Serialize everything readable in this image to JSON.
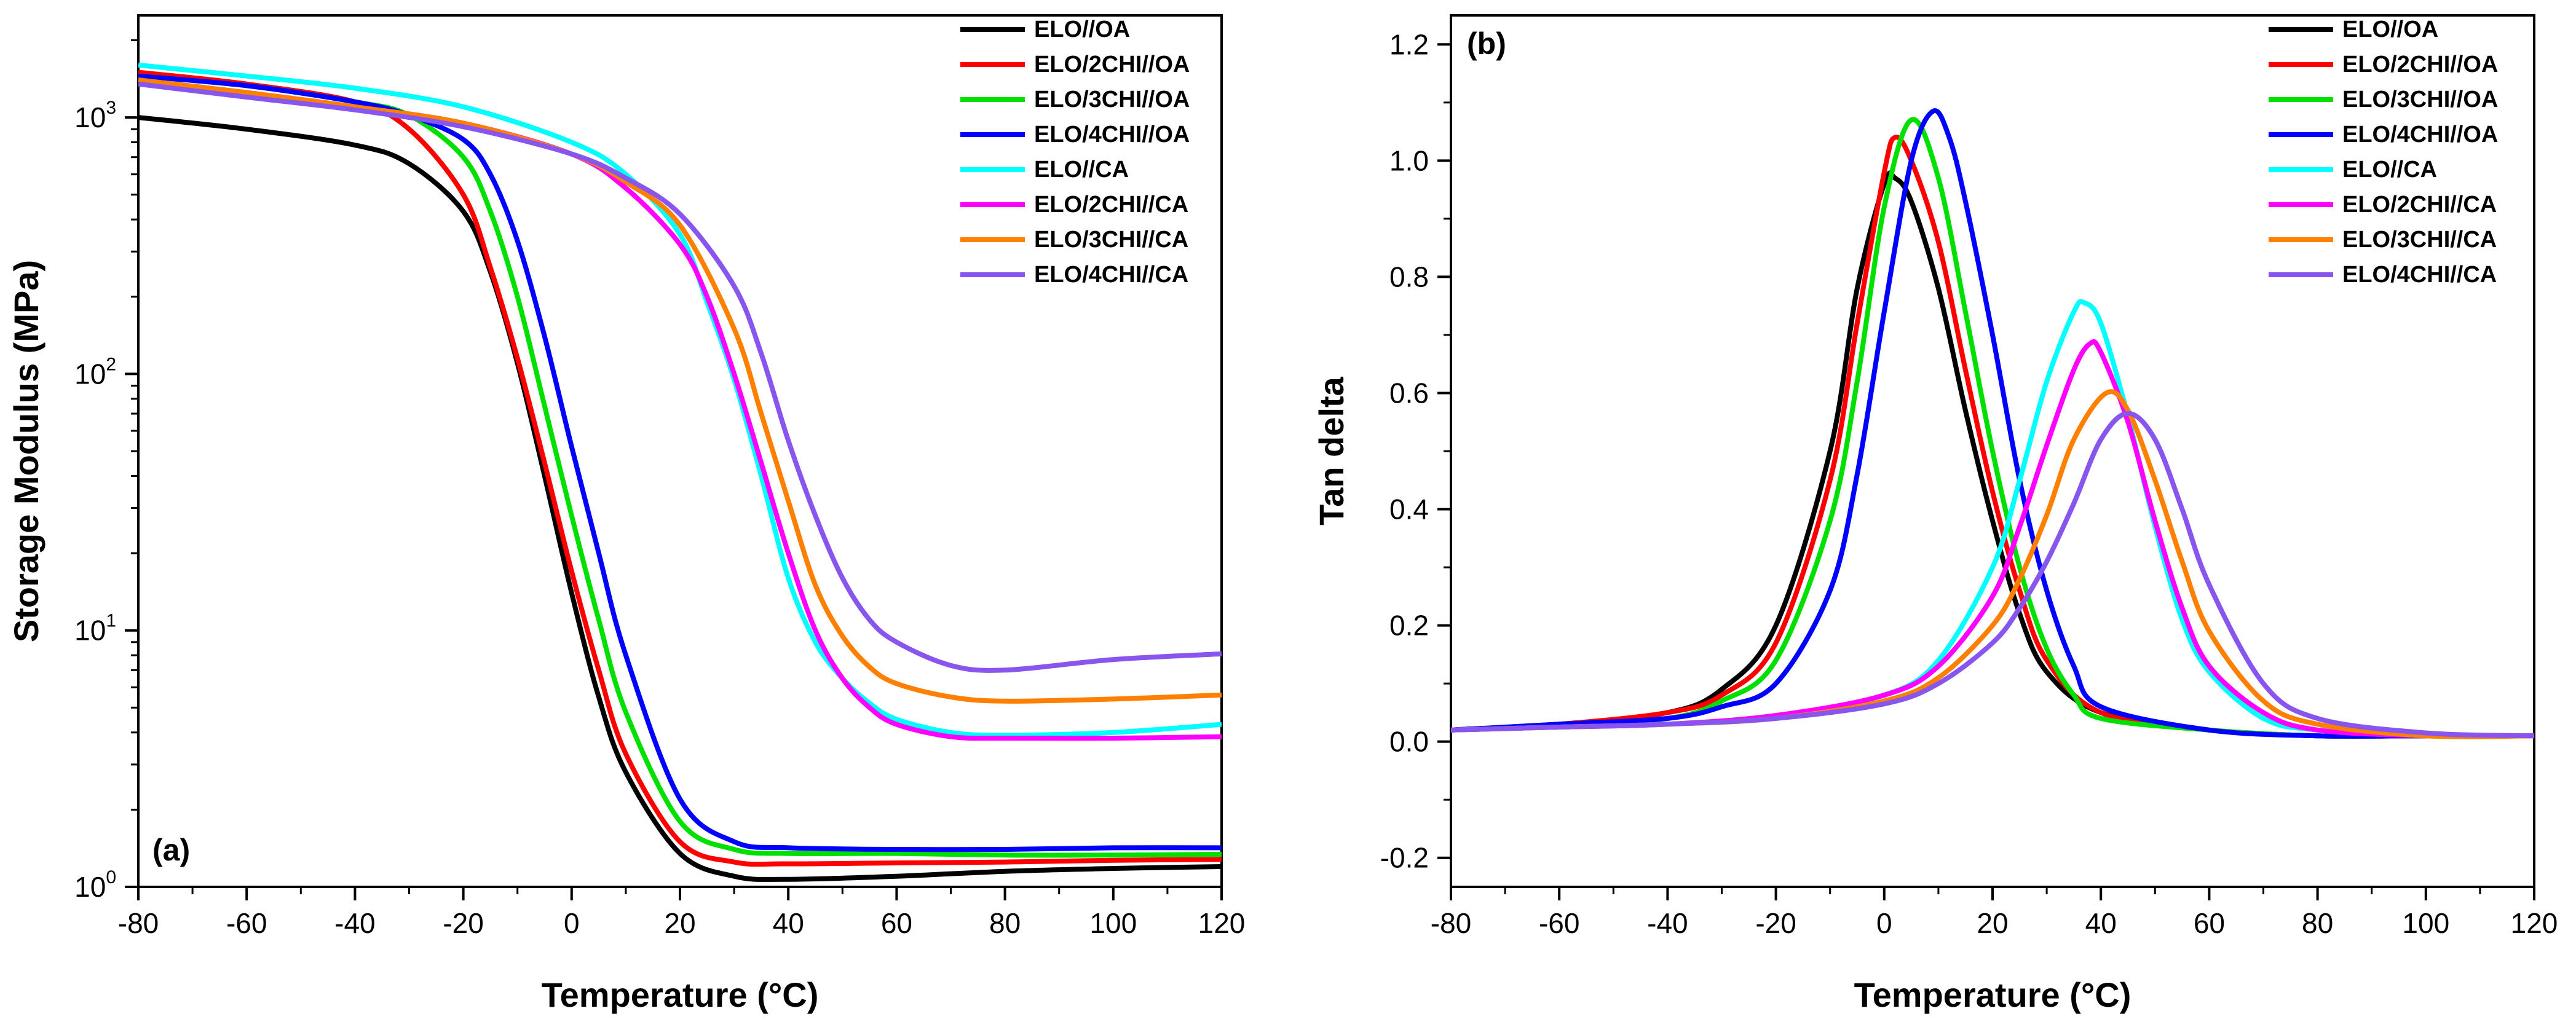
{
  "chart_data": [
    {
      "panel": "(a)",
      "type": "line",
      "xlabel": "Temperature (°C)",
      "ylabel": "Storage Modulus (MPa)",
      "yscale": "log",
      "xlim": [
        -80,
        120
      ],
      "ylim": [
        1,
        2500
      ],
      "xticks": [
        -80,
        -60,
        -40,
        -20,
        0,
        20,
        40,
        60,
        80,
        100,
        120
      ],
      "yticks": [
        {
          "base": "10",
          "exp": "0",
          "value": 1
        },
        {
          "base": "10",
          "exp": "1",
          "value": 10
        },
        {
          "base": "10",
          "exp": "2",
          "value": 100
        },
        {
          "base": "10",
          "exp": "3",
          "value": 1000
        }
      ],
      "legend_position": "top-right",
      "series": [
        {
          "name": "ELO//OA",
          "color": "#000000",
          "x": [
            -80,
            -60,
            -40,
            -30,
            -20,
            -15,
            -10,
            -5,
            0,
            5,
            10,
            20,
            30,
            40,
            60,
            80,
            100,
            120
          ],
          "y": [
            1000,
            900,
            780,
            660,
            430,
            250,
            110,
            40,
            14,
            5.5,
            2.8,
            1.35,
            1.1,
            1.07,
            1.1,
            1.15,
            1.18,
            1.2
          ]
        },
        {
          "name": "ELO/2CHI//OA",
          "color": "#ff0000",
          "x": [
            -80,
            -60,
            -40,
            -30,
            -20,
            -15,
            -10,
            -5,
            0,
            5,
            10,
            20,
            30,
            40,
            60,
            80,
            100,
            120
          ],
          "y": [
            1500,
            1350,
            1150,
            900,
            500,
            260,
            115,
            45,
            17,
            7,
            3.3,
            1.5,
            1.25,
            1.23,
            1.24,
            1.25,
            1.27,
            1.28
          ]
        },
        {
          "name": "ELO/3CHI//OA",
          "color": "#00e000",
          "x": [
            -80,
            -60,
            -40,
            -30,
            -20,
            -15,
            -10,
            -5,
            0,
            5,
            10,
            20,
            30,
            40,
            60,
            80,
            100,
            120
          ],
          "y": [
            1450,
            1330,
            1150,
            1020,
            700,
            430,
            200,
            75,
            28,
            11,
            4.8,
            1.8,
            1.4,
            1.35,
            1.35,
            1.33,
            1.33,
            1.34
          ]
        },
        {
          "name": "ELO/4CHI//OA",
          "color": "#0000ff",
          "x": [
            -80,
            -60,
            -40,
            -30,
            -20,
            -15,
            -10,
            -5,
            0,
            5,
            10,
            20,
            30,
            40,
            60,
            80,
            100,
            120
          ],
          "y": [
            1450,
            1330,
            1150,
            1020,
            820,
            600,
            330,
            140,
            52,
            20,
            8,
            2.2,
            1.5,
            1.42,
            1.4,
            1.4,
            1.42,
            1.42
          ]
        },
        {
          "name": "ELO//CA",
          "color": "#00ffff",
          "x": [
            -80,
            -60,
            -40,
            -20,
            0,
            10,
            20,
            25,
            30,
            35,
            40,
            45,
            50,
            55,
            60,
            70,
            80,
            100,
            120
          ],
          "y": [
            1600,
            1450,
            1300,
            1100,
            800,
            600,
            350,
            190,
            95,
            40,
            16,
            9,
            6.5,
            5.2,
            4.5,
            4.0,
            3.9,
            4.0,
            4.3
          ]
        },
        {
          "name": "ELO/2CHI//CA",
          "color": "#ff00ff",
          "x": [
            -80,
            -60,
            -40,
            -20,
            0,
            10,
            20,
            25,
            30,
            35,
            40,
            45,
            50,
            55,
            60,
            70,
            80,
            100,
            120
          ],
          "y": [
            1400,
            1250,
            1100,
            950,
            720,
            530,
            320,
            200,
            100,
            45,
            20,
            10,
            6.5,
            5.0,
            4.3,
            3.85,
            3.8,
            3.8,
            3.85
          ]
        },
        {
          "name": "ELO/3CHI//CA",
          "color": "#ff8000",
          "x": [
            -80,
            -60,
            -40,
            -20,
            0,
            10,
            20,
            30,
            35,
            40,
            45,
            50,
            55,
            60,
            70,
            80,
            100,
            120
          ],
          "y": [
            1400,
            1250,
            1100,
            950,
            720,
            560,
            380,
            150,
            70,
            32,
            15,
            9.5,
            7.2,
            6.2,
            5.5,
            5.3,
            5.4,
            5.6
          ]
        },
        {
          "name": "ELO/4CHI//CA",
          "color": "#8855ee",
          "x": [
            -80,
            -60,
            -40,
            -20,
            0,
            10,
            20,
            30,
            35,
            40,
            45,
            50,
            55,
            60,
            70,
            80,
            100,
            120
          ],
          "y": [
            1350,
            1200,
            1070,
            920,
            720,
            580,
            420,
            220,
            120,
            55,
            28,
            16,
            11,
            9,
            7.3,
            7.0,
            7.7,
            8.1
          ]
        }
      ]
    },
    {
      "panel": "(b)",
      "type": "line",
      "xlabel": "Temperature (°C)",
      "ylabel": "Tan delta",
      "xlim": [
        -80,
        120
      ],
      "ylim": [
        -0.25,
        1.25
      ],
      "xticks": [
        -80,
        -60,
        -40,
        -20,
        0,
        20,
        40,
        60,
        80,
        100,
        120
      ],
      "yticks": [
        -0.2,
        0.0,
        0.2,
        0.4,
        0.6,
        0.8,
        1.0,
        1.2
      ],
      "legend_position": "top-right",
      "series": [
        {
          "name": "ELO//OA",
          "color": "#000000",
          "x": [
            -80,
            -60,
            -40,
            -30,
            -20,
            -10,
            -5,
            0,
            2,
            5,
            10,
            15,
            20,
            25,
            30,
            40,
            60,
            80,
            100,
            120
          ],
          "y": [
            0.02,
            0.03,
            0.05,
            0.09,
            0.2,
            0.5,
            0.78,
            0.96,
            0.97,
            0.93,
            0.78,
            0.57,
            0.38,
            0.22,
            0.12,
            0.05,
            0.02,
            0.01,
            0.01,
            0.01
          ]
        },
        {
          "name": "ELO/2CHI//OA",
          "color": "#ff0000",
          "x": [
            -80,
            -60,
            -40,
            -30,
            -20,
            -10,
            -5,
            0,
            2,
            5,
            10,
            15,
            20,
            25,
            30,
            40,
            60,
            80,
            100,
            120
          ],
          "y": [
            0.02,
            0.03,
            0.05,
            0.08,
            0.17,
            0.45,
            0.72,
            0.98,
            1.04,
            1.0,
            0.86,
            0.64,
            0.43,
            0.26,
            0.14,
            0.05,
            0.02,
            0.01,
            0.01,
            0.01
          ]
        },
        {
          "name": "ELO/3CHI//OA",
          "color": "#00e000",
          "x": [
            -80,
            -60,
            -40,
            -30,
            -20,
            -10,
            -5,
            0,
            5,
            10,
            15,
            20,
            25,
            30,
            35,
            40,
            60,
            80,
            100,
            120
          ],
          "y": [
            0.02,
            0.03,
            0.04,
            0.07,
            0.14,
            0.38,
            0.62,
            0.92,
            1.07,
            0.97,
            0.74,
            0.5,
            0.3,
            0.16,
            0.08,
            0.04,
            0.02,
            0.01,
            0.01,
            0.01
          ]
        },
        {
          "name": "ELO/4CHI//OA",
          "color": "#0000ff",
          "x": [
            -80,
            -60,
            -40,
            -30,
            -20,
            -10,
            -5,
            0,
            5,
            9,
            12,
            15,
            20,
            25,
            30,
            35,
            40,
            60,
            80,
            100,
            120
          ],
          "y": [
            0.02,
            0.03,
            0.04,
            0.06,
            0.1,
            0.26,
            0.46,
            0.74,
            1.0,
            1.085,
            1.04,
            0.93,
            0.7,
            0.45,
            0.26,
            0.13,
            0.06,
            0.02,
            0.01,
            0.01,
            0.01
          ]
        },
        {
          "name": "ELO//CA",
          "color": "#00ffff",
          "x": [
            -80,
            -60,
            -40,
            -20,
            0,
            10,
            20,
            25,
            30,
            35,
            37,
            40,
            45,
            50,
            55,
            60,
            70,
            80,
            100,
            120
          ],
          "y": [
            0.02,
            0.025,
            0.03,
            0.045,
            0.08,
            0.14,
            0.3,
            0.45,
            0.62,
            0.74,
            0.755,
            0.72,
            0.56,
            0.37,
            0.21,
            0.12,
            0.04,
            0.02,
            0.01,
            0.01
          ]
        },
        {
          "name": "ELO/2CHI//CA",
          "color": "#ff00ff",
          "x": [
            -80,
            -60,
            -40,
            -20,
            0,
            10,
            20,
            25,
            30,
            35,
            38,
            40,
            45,
            50,
            55,
            60,
            70,
            80,
            100,
            120
          ],
          "y": [
            0.02,
            0.025,
            0.03,
            0.045,
            0.08,
            0.13,
            0.25,
            0.37,
            0.51,
            0.64,
            0.685,
            0.67,
            0.55,
            0.38,
            0.23,
            0.13,
            0.05,
            0.02,
            0.01,
            0.01
          ]
        },
        {
          "name": "ELO/3CHI//CA",
          "color": "#ff8000",
          "x": [
            -80,
            -60,
            -40,
            -20,
            0,
            10,
            20,
            25,
            30,
            35,
            41,
            45,
            50,
            55,
            60,
            70,
            80,
            100,
            120
          ],
          "y": [
            0.02,
            0.025,
            0.03,
            0.04,
            0.07,
            0.11,
            0.2,
            0.28,
            0.39,
            0.52,
            0.6,
            0.57,
            0.45,
            0.31,
            0.19,
            0.07,
            0.03,
            0.01,
            0.01
          ]
        },
        {
          "name": "ELO/4CHI//CA",
          "color": "#8855ee",
          "x": [
            -80,
            -60,
            -40,
            -20,
            0,
            10,
            20,
            25,
            30,
            35,
            40,
            45,
            50,
            55,
            60,
            70,
            80,
            100,
            120
          ],
          "y": [
            0.02,
            0.025,
            0.03,
            0.04,
            0.065,
            0.1,
            0.17,
            0.23,
            0.31,
            0.41,
            0.52,
            0.565,
            0.52,
            0.4,
            0.27,
            0.1,
            0.04,
            0.015,
            0.01
          ]
        }
      ]
    }
  ]
}
